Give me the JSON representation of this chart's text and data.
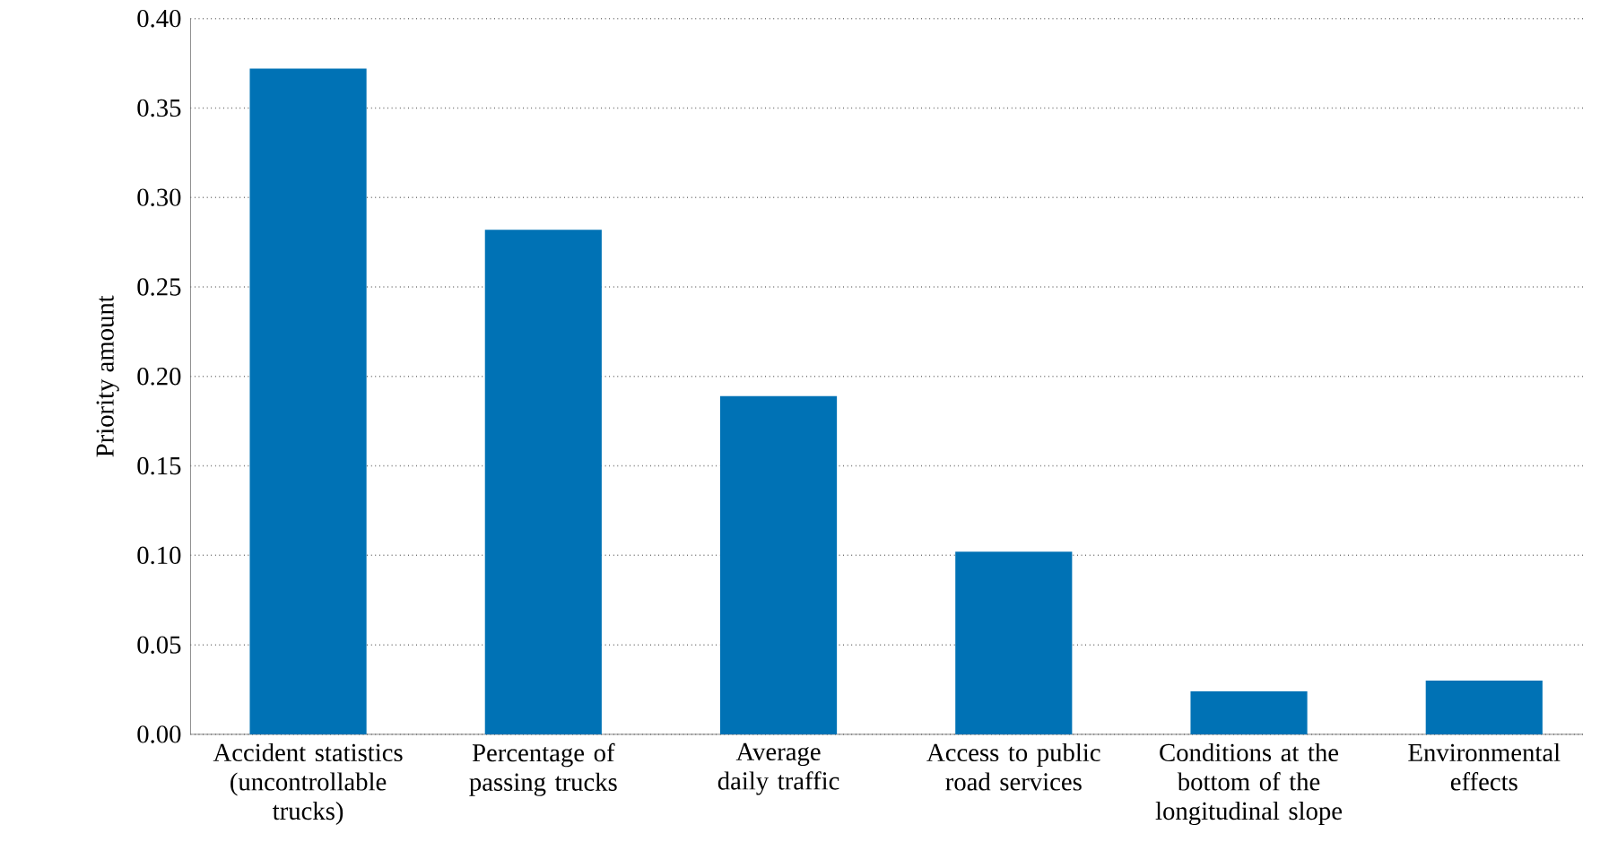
{
  "chart_data": {
    "type": "bar",
    "ylabel": "Priority amount",
    "categories": [
      "Accident statistics (uncontrollable trucks)",
      "Percentage of passing trucks",
      "Average daily traffic",
      "Access to public road services",
      "Conditions at the bottom of the longitudinal slope",
      "Environmental effects"
    ],
    "values": [
      0.372,
      0.282,
      0.189,
      0.102,
      0.024,
      0.03
    ],
    "color": "#0072b5",
    "ylim": [
      0,
      0.4
    ],
    "yticks": [
      {
        "value": 0,
        "label": "0.00"
      },
      {
        "value": 0.05,
        "label": "0.05"
      },
      {
        "value": 0.1,
        "label": "0.10"
      },
      {
        "value": 0.15,
        "label": "0.15"
      },
      {
        "value": 0.2,
        "label": "0.20"
      },
      {
        "value": 0.25,
        "label": "0.25"
      },
      {
        "value": 0.3,
        "label": "0.30"
      },
      {
        "value": 0.35,
        "label": "0.35"
      },
      {
        "value": 0.4,
        "label": "0.40"
      }
    ],
    "grid": "y"
  }
}
